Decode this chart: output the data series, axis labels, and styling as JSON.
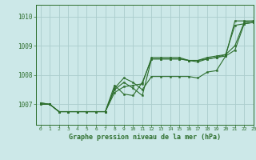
{
  "title": "Graphe pression niveau de la mer (hPa)",
  "bg_color": "#cce8e8",
  "grid_color": "#aacccc",
  "line_color": "#2d6e2d",
  "xlim": [
    -0.5,
    23
  ],
  "ylim": [
    1006.3,
    1010.4
  ],
  "yticks": [
    1007,
    1008,
    1009,
    1010
  ],
  "xticks": [
    0,
    1,
    2,
    3,
    4,
    5,
    6,
    7,
    8,
    9,
    10,
    11,
    12,
    13,
    14,
    15,
    16,
    17,
    18,
    19,
    20,
    21,
    22,
    23
  ],
  "series": [
    [
      1007.05,
      1007.0,
      1006.75,
      1006.75,
      1006.75,
      1006.75,
      1006.75,
      1006.75,
      1007.65,
      1007.35,
      1007.3,
      1007.75,
      1008.55,
      1008.55,
      1008.55,
      1008.55,
      1008.5,
      1008.45,
      1008.55,
      1008.6,
      1008.7,
      1009.7,
      1009.75,
      1009.8
    ],
    [
      1007.05,
      1007.0,
      1006.75,
      1006.75,
      1006.75,
      1006.75,
      1006.75,
      1006.75,
      1007.5,
      1007.75,
      1007.55,
      1007.3,
      1008.55,
      1008.55,
      1008.55,
      1008.55,
      1008.5,
      1008.5,
      1008.55,
      1008.6,
      1008.65,
      1008.85,
      1009.75,
      1009.8
    ],
    [
      1007.0,
      1007.0,
      1006.75,
      1006.75,
      1006.75,
      1006.75,
      1006.75,
      1006.75,
      1007.4,
      1007.6,
      1007.65,
      1007.7,
      1008.6,
      1008.6,
      1008.6,
      1008.6,
      1008.5,
      1008.5,
      1008.6,
      1008.65,
      1008.7,
      1009.0,
      1009.8,
      1009.85
    ],
    [
      1007.0,
      1007.0,
      1006.75,
      1006.75,
      1006.75,
      1006.75,
      1006.75,
      1006.75,
      1007.55,
      1007.9,
      1007.75,
      1007.5,
      1007.95,
      1007.95,
      1007.95,
      1007.95,
      1007.95,
      1007.9,
      1008.1,
      1008.15,
      1008.65,
      1009.85,
      1009.85,
      1009.85
    ]
  ]
}
